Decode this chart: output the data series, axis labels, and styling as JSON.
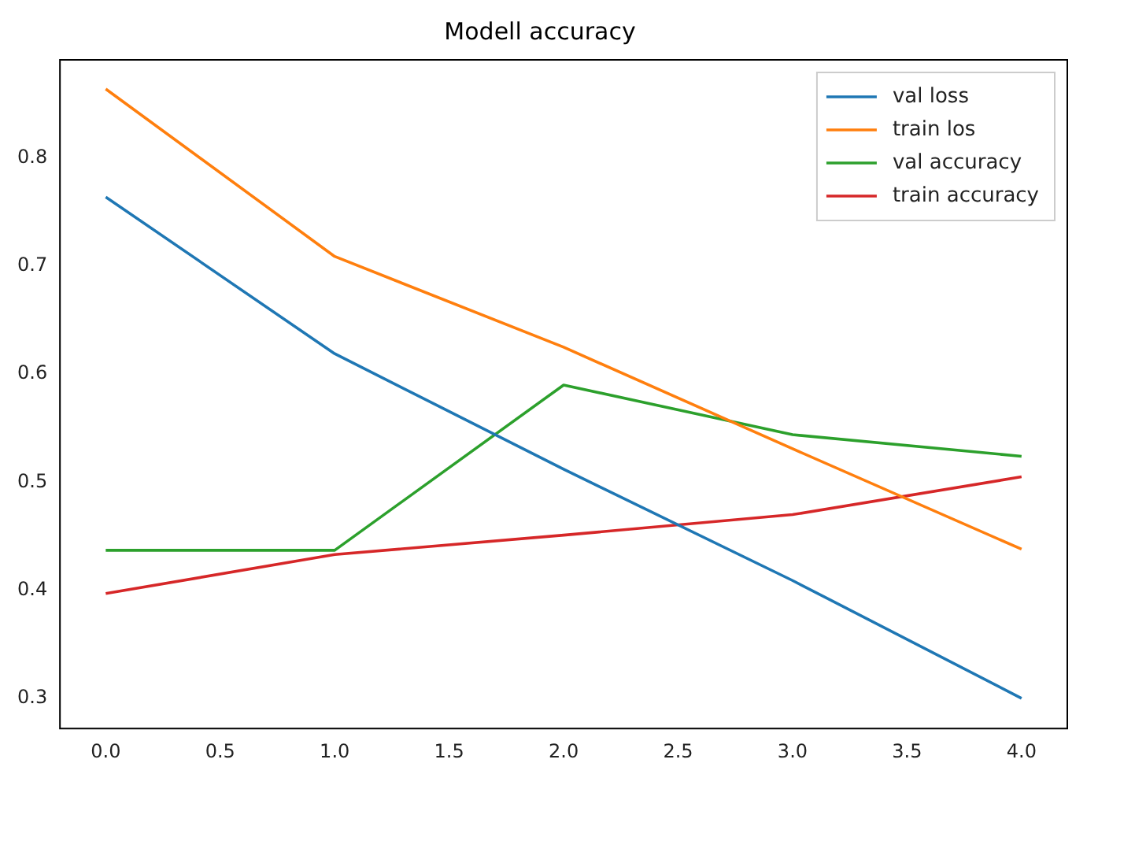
{
  "chart_data": {
    "type": "line",
    "title": "Modell accuracy",
    "x": [
      0,
      1,
      2,
      3,
      4
    ],
    "series": [
      {
        "name": "val loss",
        "color": "#1f77b4",
        "values": [
          0.764,
          0.619,
          0.512,
          0.409,
          0.3
        ]
      },
      {
        "name": "train los",
        "color": "#ff7f0e",
        "values": [
          0.864,
          0.709,
          0.625,
          0.531,
          0.438
        ]
      },
      {
        "name": "val accuracy",
        "color": "#2ca02c",
        "values": [
          0.437,
          0.437,
          0.59,
          0.544,
          0.524
        ]
      },
      {
        "name": "train accuracy",
        "color": "#d62728",
        "values": [
          0.397,
          0.433,
          0.451,
          0.47,
          0.505
        ]
      }
    ],
    "xlim": [
      -0.2,
      4.2
    ],
    "xticks": [
      {
        "value": 0,
        "label": "0.0"
      },
      {
        "value": 0.5,
        "label": "0.5"
      },
      {
        "value": 1,
        "label": "1.0"
      },
      {
        "value": 1.5,
        "label": "1.5"
      },
      {
        "value": 2,
        "label": "2.0"
      },
      {
        "value": 2.5,
        "label": "2.5"
      },
      {
        "value": 3,
        "label": "3.0"
      },
      {
        "value": 3.5,
        "label": "3.5"
      },
      {
        "value": 4,
        "label": "4.0"
      }
    ],
    "ylim": [
      0.272,
      0.891
    ],
    "yticks": [
      0.3,
      0.4,
      0.5,
      0.6,
      0.7,
      0.8
    ],
    "grid": false,
    "legend": "top right",
    "marker": "none",
    "line_style": "solid"
  }
}
